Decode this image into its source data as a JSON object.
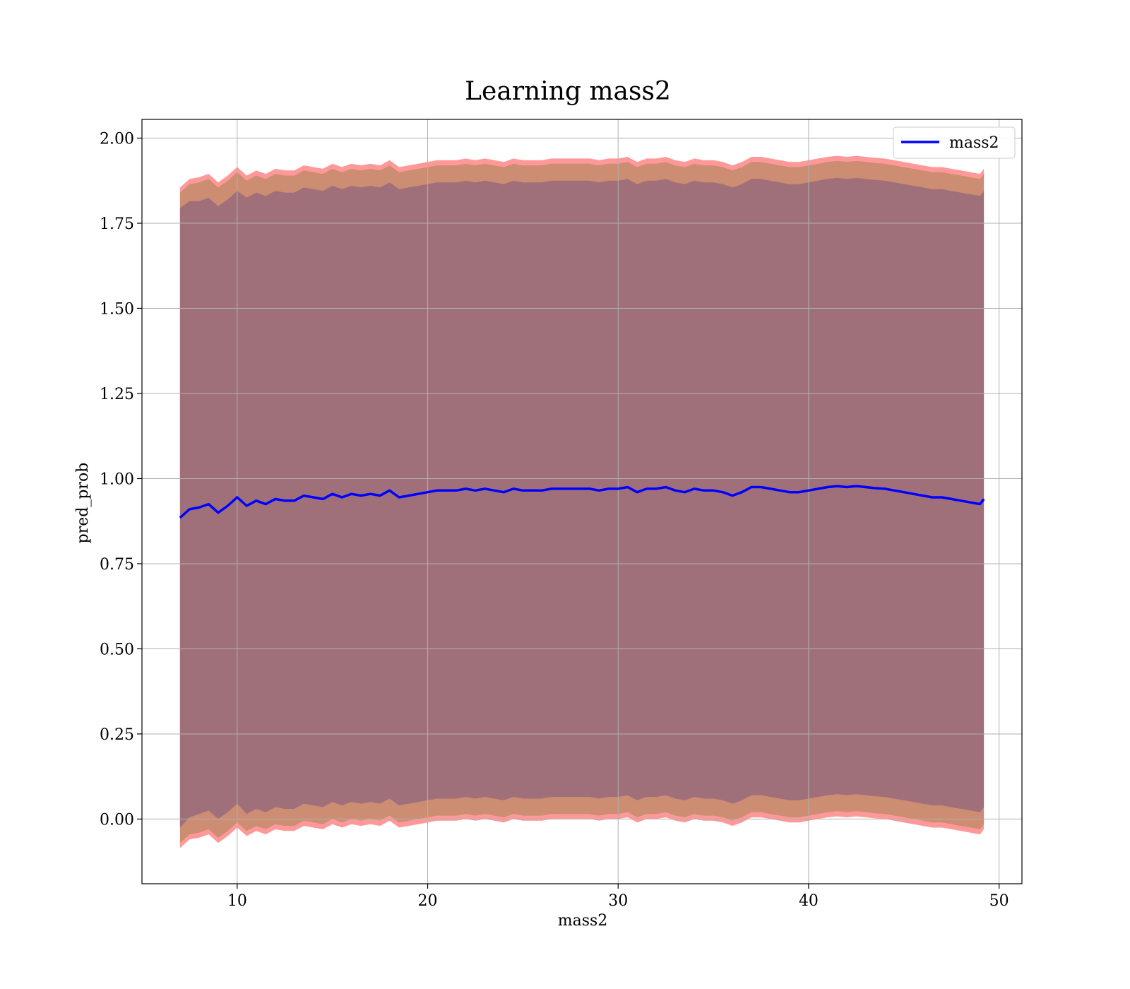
{
  "chart_data": {
    "type": "line",
    "title": "Learning mass2",
    "xlabel": "mass2",
    "ylabel": "pred_prob",
    "xlim": [
      5,
      51.2
    ],
    "ylim": [
      -0.19,
      2.055
    ],
    "x_ticks": [
      10,
      20,
      30,
      40,
      50
    ],
    "x_tick_labels": [
      "10",
      "20",
      "30",
      "40",
      "50"
    ],
    "y_ticks": [
      0.0,
      0.25,
      0.5,
      0.75,
      1.0,
      1.25,
      1.5,
      1.75,
      2.0
    ],
    "y_tick_labels": [
      "0.00",
      "0.25",
      "0.50",
      "0.75",
      "1.00",
      "1.25",
      "1.50",
      "1.75",
      "2.00"
    ],
    "grid": true,
    "legend": {
      "position": "top-right",
      "entries": [
        "mass2"
      ]
    },
    "colors": {
      "line": "#0000ff",
      "band_outer": "#ff9999",
      "band_middle": "#cd8d72",
      "band_inner": "#a0707a",
      "grid": "#b0b0b0"
    },
    "series": [
      {
        "name": "mass2",
        "x": [
          7.0,
          7.5,
          8.0,
          8.5,
          9.0,
          9.5,
          10.0,
          10.5,
          11.0,
          11.5,
          12.0,
          12.5,
          13.0,
          13.5,
          14.0,
          14.5,
          15.0,
          15.5,
          16.0,
          16.5,
          17.0,
          17.5,
          18.0,
          18.5,
          19.0,
          19.5,
          20.0,
          20.5,
          21.0,
          21.5,
          22.0,
          22.5,
          23.0,
          23.5,
          24.0,
          24.5,
          25.0,
          25.5,
          26.0,
          26.5,
          27.0,
          27.5,
          28.0,
          28.5,
          29.0,
          29.5,
          30.0,
          30.5,
          31.0,
          31.5,
          32.0,
          32.5,
          33.0,
          33.5,
          34.0,
          34.5,
          35.0,
          35.5,
          36.0,
          36.5,
          37.0,
          37.5,
          38.0,
          38.5,
          39.0,
          39.5,
          40.0,
          40.5,
          41.0,
          41.5,
          42.0,
          42.5,
          43.0,
          43.5,
          44.0,
          44.5,
          45.0,
          45.5,
          46.0,
          46.5,
          47.0,
          47.5,
          48.0,
          48.5,
          49.0,
          49.2
        ],
        "y": [
          0.885,
          0.91,
          0.915,
          0.925,
          0.9,
          0.92,
          0.945,
          0.92,
          0.935,
          0.925,
          0.94,
          0.935,
          0.935,
          0.95,
          0.945,
          0.94,
          0.955,
          0.945,
          0.955,
          0.95,
          0.955,
          0.95,
          0.965,
          0.945,
          0.95,
          0.955,
          0.96,
          0.965,
          0.965,
          0.965,
          0.97,
          0.965,
          0.97,
          0.965,
          0.96,
          0.97,
          0.965,
          0.965,
          0.965,
          0.97,
          0.97,
          0.97,
          0.97,
          0.97,
          0.965,
          0.97,
          0.97,
          0.975,
          0.96,
          0.97,
          0.97,
          0.975,
          0.965,
          0.96,
          0.97,
          0.965,
          0.965,
          0.96,
          0.95,
          0.96,
          0.975,
          0.975,
          0.97,
          0.965,
          0.96,
          0.96,
          0.965,
          0.97,
          0.975,
          0.978,
          0.975,
          0.978,
          0.975,
          0.972,
          0.97,
          0.965,
          0.96,
          0.955,
          0.95,
          0.945,
          0.945,
          0.94,
          0.935,
          0.93,
          0.925,
          0.94
        ],
        "std_inner": [
          0.91,
          0.905,
          0.9,
          0.9,
          0.9,
          0.9,
          0.9,
          0.905,
          0.905,
          0.905,
          0.905,
          0.905,
          0.905,
          0.905,
          0.905,
          0.905,
          0.905,
          0.905,
          0.905,
          0.905,
          0.905,
          0.905,
          0.905,
          0.905,
          0.905,
          0.905,
          0.905,
          0.905,
          0.905,
          0.905,
          0.905,
          0.905,
          0.905,
          0.905,
          0.905,
          0.905,
          0.905,
          0.905,
          0.905,
          0.905,
          0.905,
          0.905,
          0.905,
          0.905,
          0.905,
          0.905,
          0.905,
          0.905,
          0.905,
          0.905,
          0.905,
          0.905,
          0.905,
          0.905,
          0.905,
          0.905,
          0.905,
          0.905,
          0.905,
          0.905,
          0.905,
          0.905,
          0.905,
          0.905,
          0.905,
          0.905,
          0.905,
          0.905,
          0.905,
          0.905,
          0.905,
          0.905,
          0.905,
          0.905,
          0.905,
          0.905,
          0.905,
          0.905,
          0.905,
          0.905,
          0.905,
          0.905,
          0.905,
          0.905,
          0.905,
          0.905
        ],
        "std_middle": [
          0.955,
          0.955,
          0.955,
          0.955,
          0.955,
          0.955,
          0.955,
          0.955,
          0.955,
          0.955,
          0.955,
          0.955,
          0.955,
          0.955,
          0.955,
          0.955,
          0.955,
          0.955,
          0.955,
          0.955,
          0.955,
          0.955,
          0.955,
          0.955,
          0.955,
          0.955,
          0.955,
          0.955,
          0.955,
          0.955,
          0.955,
          0.955,
          0.955,
          0.955,
          0.955,
          0.955,
          0.955,
          0.955,
          0.955,
          0.955,
          0.955,
          0.955,
          0.955,
          0.955,
          0.955,
          0.955,
          0.955,
          0.955,
          0.955,
          0.955,
          0.955,
          0.955,
          0.955,
          0.955,
          0.955,
          0.955,
          0.955,
          0.955,
          0.955,
          0.955,
          0.955,
          0.955,
          0.955,
          0.955,
          0.955,
          0.955,
          0.955,
          0.955,
          0.955,
          0.955,
          0.955,
          0.955,
          0.955,
          0.955,
          0.955,
          0.955,
          0.955,
          0.955,
          0.955,
          0.955,
          0.955,
          0.955,
          0.955,
          0.955,
          0.955,
          0.955
        ],
        "std_outer": [
          0.97,
          0.97,
          0.97,
          0.97,
          0.97,
          0.97,
          0.97,
          0.97,
          0.97,
          0.97,
          0.97,
          0.97,
          0.97,
          0.97,
          0.97,
          0.97,
          0.97,
          0.97,
          0.97,
          0.97,
          0.97,
          0.97,
          0.97,
          0.97,
          0.97,
          0.97,
          0.97,
          0.97,
          0.97,
          0.97,
          0.97,
          0.97,
          0.97,
          0.97,
          0.97,
          0.97,
          0.97,
          0.97,
          0.97,
          0.97,
          0.97,
          0.97,
          0.97,
          0.97,
          0.97,
          0.97,
          0.97,
          0.97,
          0.97,
          0.97,
          0.97,
          0.97,
          0.97,
          0.97,
          0.97,
          0.97,
          0.97,
          0.97,
          0.97,
          0.97,
          0.97,
          0.97,
          0.97,
          0.97,
          0.97,
          0.97,
          0.97,
          0.97,
          0.97,
          0.97,
          0.97,
          0.97,
          0.97,
          0.97,
          0.97,
          0.97,
          0.97,
          0.97,
          0.97,
          0.97,
          0.97,
          0.97,
          0.97,
          0.97,
          0.97,
          0.97
        ]
      }
    ]
  }
}
